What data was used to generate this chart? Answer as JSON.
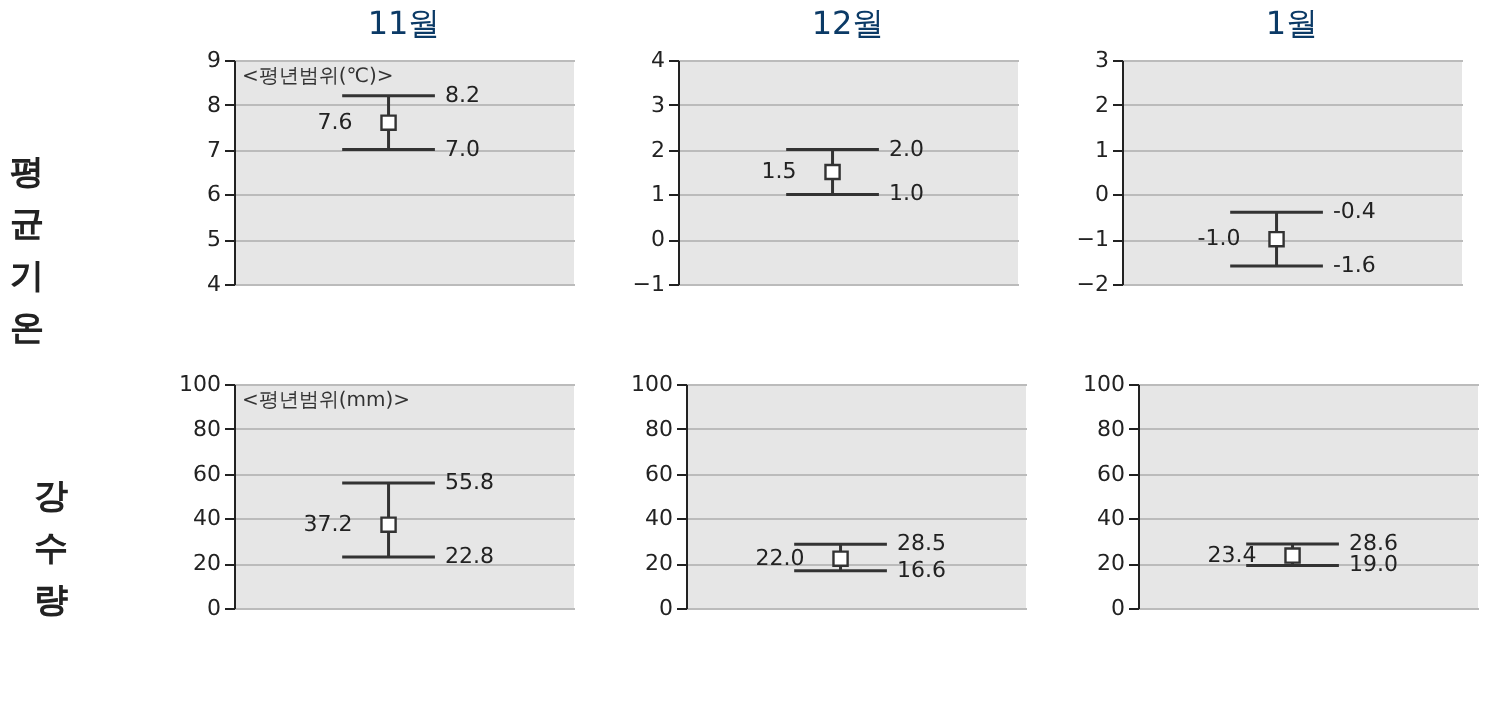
{
  "chart_data": [
    {
      "type": "scatter",
      "title": "11월",
      "subtitle": "<평년범위(℃)>",
      "ylabel": "평균기온",
      "annotations": [
        "8.2",
        "7.0"
      ],
      "categories": [
        null
      ],
      "values": [
        7.6
      ],
      "value_labels": [
        "7.6"
      ],
      "errors": [
        [
          7.0,
          8.2
        ]
      ],
      "color": "#333333",
      "marker": "square",
      "ylim": [
        4,
        9
      ],
      "yticks": [
        4,
        5,
        6,
        7,
        8,
        9
      ],
      "grid": "y"
    },
    {
      "type": "scatter",
      "title": "12월",
      "annotations": [
        "2.0",
        "1.0"
      ],
      "categories": [
        null
      ],
      "values": [
        1.5
      ],
      "value_labels": [
        "1.5"
      ],
      "errors": [
        [
          1.0,
          2.0
        ]
      ],
      "color": "#333333",
      "marker": "square",
      "ylim": [
        -1,
        4
      ],
      "yticks": [
        -1,
        0,
        1,
        2,
        3,
        4
      ],
      "grid": "y"
    },
    {
      "type": "scatter",
      "title": "1월",
      "annotations": [
        "-0.4",
        "-1.6"
      ],
      "categories": [
        null
      ],
      "values": [
        -1.0
      ],
      "value_labels": [
        "-1.0"
      ],
      "errors": [
        [
          -1.6,
          -0.4
        ]
      ],
      "color": "#333333",
      "marker": "square",
      "ylim": [
        -2,
        3
      ],
      "yticks": [
        -2,
        -1,
        0,
        1,
        2,
        3
      ],
      "grid": "y"
    },
    {
      "type": "scatter",
      "subtitle": "<평년범위(mm)>",
      "ylabel": "강수량",
      "annotations": [
        "55.8",
        "22.8"
      ],
      "categories": [
        null
      ],
      "values": [
        37.2
      ],
      "value_labels": [
        "37.2"
      ],
      "errors": [
        [
          22.8,
          55.8
        ]
      ],
      "color": "#333333",
      "marker": "square",
      "ylim": [
        0,
        100
      ],
      "yticks": [
        0,
        20,
        40,
        60,
        80,
        100
      ],
      "grid": "y"
    },
    {
      "type": "scatter",
      "annotations": [
        "28.5",
        "16.6"
      ],
      "categories": [
        null
      ],
      "values": [
        22.0
      ],
      "value_labels": [
        "22.0"
      ],
      "errors": [
        [
          16.6,
          28.5
        ]
      ],
      "color": "#333333",
      "marker": "square",
      "ylim": [
        0,
        100
      ],
      "yticks": [
        0,
        20,
        40,
        60,
        80,
        100
      ],
      "grid": "y"
    },
    {
      "type": "scatter",
      "annotations": [
        "28.6",
        "19.0"
      ],
      "categories": [
        null
      ],
      "values": [
        23.4
      ],
      "value_labels": [
        "23.4"
      ],
      "errors": [
        [
          19.0,
          28.6
        ]
      ],
      "color": "#333333",
      "marker": "square",
      "ylim": [
        0,
        100
      ],
      "yticks": [
        0,
        20,
        40,
        60,
        80,
        100
      ],
      "grid": "y"
    }
  ]
}
